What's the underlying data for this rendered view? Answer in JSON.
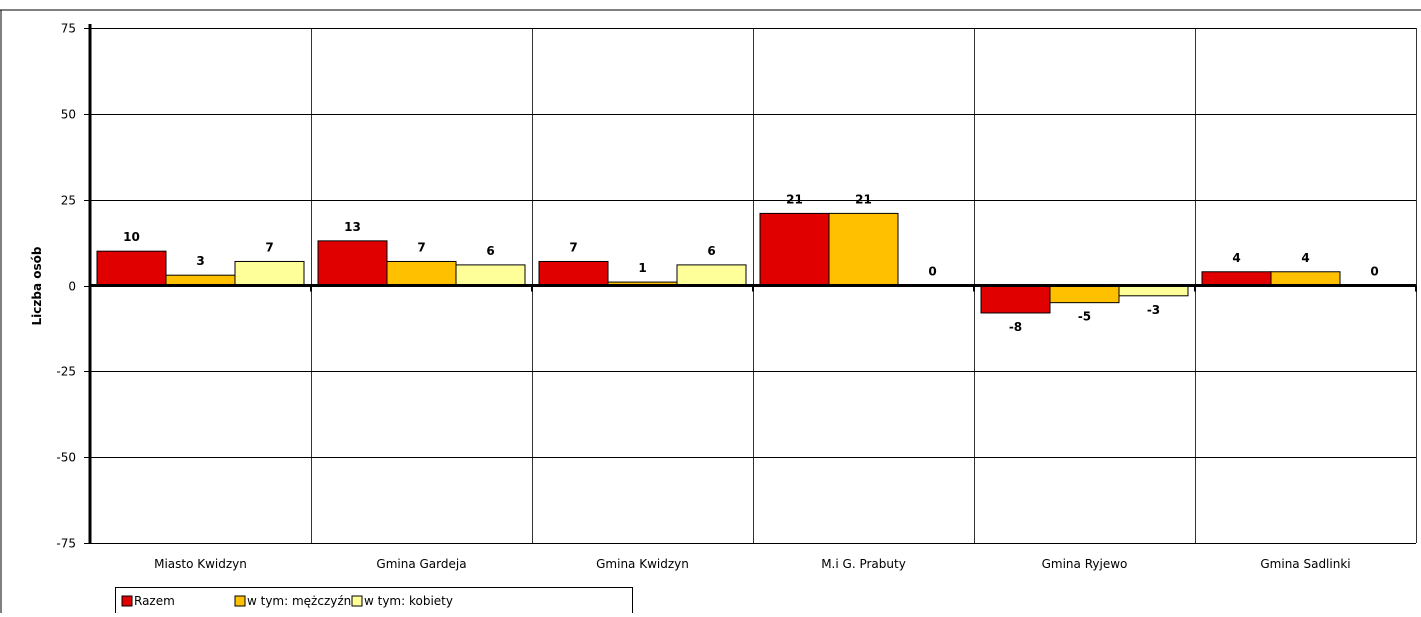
{
  "chart_data": {
    "type": "bar",
    "title": "",
    "xlabel": "",
    "ylabel": "Liczba osób",
    "ylim": [
      -75,
      75
    ],
    "yticks": [
      75,
      50,
      25,
      0,
      -25,
      -50,
      -75
    ],
    "grid": true,
    "legend_position": "bottom-left",
    "categories": [
      "Miasto Kwidzyn",
      "Gmina Gardeja",
      "Gmina Kwidzyn",
      "M.i G. Prabuty",
      "Gmina Ryjewo",
      "Gmina Sadlinki"
    ],
    "series": [
      {
        "name": "Razem",
        "color": "#e00000",
        "values": [
          10,
          13,
          7,
          21,
          -8,
          4
        ]
      },
      {
        "name": "w tym: mężczyźni",
        "color": "#ffc000",
        "values": [
          3,
          7,
          1,
          21,
          -5,
          4
        ]
      },
      {
        "name": "w tym: kobiety",
        "color": "#ffff99",
        "values": [
          7,
          6,
          6,
          0,
          -3,
          0
        ]
      }
    ]
  }
}
